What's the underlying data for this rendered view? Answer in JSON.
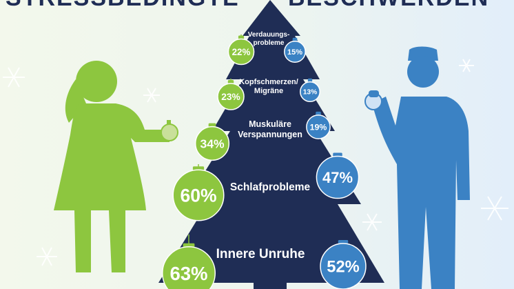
{
  "title": {
    "left": "STRESSBEDINGTE",
    "right": "BESCHWERDEN"
  },
  "colors": {
    "women": "#8dc63f",
    "men": "#3b82c4",
    "tree": "#1f2d55",
    "bg_left": "#eef6e6",
    "bg_right": "#e4f0fb"
  },
  "chart_data": {
    "type": "bar",
    "categories": [
      "Verdauungsprobleme",
      "Kopfschmerzen/Migräne",
      "Muskuläre Verspannungen",
      "Schlafprobleme",
      "Innere Unruhe"
    ],
    "category_lines": [
      [
        "Verdauungs-",
        "probleme"
      ],
      [
        "Kopfschmerzen/",
        "Migräne"
      ],
      [
        "Muskuläre",
        "Verspannungen"
      ],
      [
        "Schlafprobleme"
      ],
      [
        "Innere Unruhe"
      ]
    ],
    "series": [
      {
        "values": [
          22,
          23,
          34,
          60,
          63
        ],
        "labels": [
          "22%",
          "23%",
          "34%",
          "60%",
          "63%"
        ]
      },
      {
        "values": [
          15,
          13,
          19,
          47,
          52
        ],
        "labels": [
          "15%",
          "13%",
          "19%",
          "47%",
          "52%"
        ]
      }
    ]
  }
}
